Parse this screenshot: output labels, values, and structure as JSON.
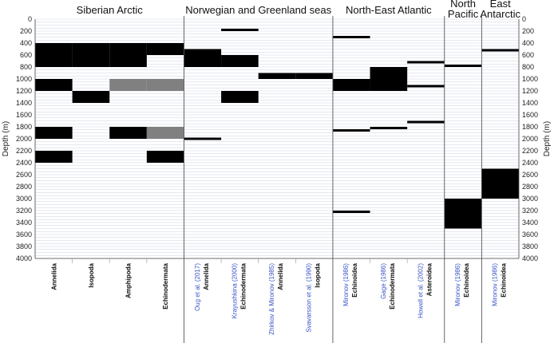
{
  "chart_data": {
    "type": "bar",
    "description_type": "depth-range range chart",
    "y_axis": {
      "label": "Depth (m)",
      "min": 0,
      "max": 4000,
      "tick_step": 200,
      "inverted": true,
      "ticks": [
        "0",
        "200",
        "400",
        "600",
        "800",
        "1000",
        "1200",
        "1400",
        "1600",
        "1800",
        "2000",
        "2200",
        "2400",
        "2600",
        "2800",
        "3000",
        "3200",
        "3400",
        "3600",
        "3800",
        "4000"
      ]
    },
    "grid": true,
    "colors": {
      "black": "#000000",
      "gray": "#808080",
      "grid": "#c9d2e3",
      "ref_text": "#3a55c8"
    },
    "regions": [
      {
        "name": "Siberian Arctic",
        "label_lines": [
          "Siberian Arctic"
        ],
        "columns": 4
      },
      {
        "name": "Norwegian and Greenland seas",
        "label_lines": [
          "Norwegian and Greenland seas"
        ],
        "columns": 4
      },
      {
        "name": "North-East Atlantic",
        "label_lines": [
          "North-East Atlantic"
        ],
        "columns": 3
      },
      {
        "name": "North Pacific",
        "label_lines": [
          "North",
          "Pacific"
        ],
        "columns": 1
      },
      {
        "name": "East Antarctic",
        "label_lines": [
          "East",
          "Antarctic"
        ],
        "columns": 1
      }
    ],
    "columns": [
      {
        "region": 0,
        "ref": "",
        "taxon": "Annelida",
        "bars": [
          {
            "from": 400,
            "to": 800,
            "color": "black"
          },
          {
            "from": 1000,
            "to": 1200,
            "color": "black"
          },
          {
            "from": 1800,
            "to": 2000,
            "color": "black"
          },
          {
            "from": 2200,
            "to": 2400,
            "color": "black"
          }
        ]
      },
      {
        "region": 0,
        "ref": "",
        "taxon": "Isopoda",
        "bars": [
          {
            "from": 400,
            "to": 800,
            "color": "black"
          },
          {
            "from": 1200,
            "to": 1400,
            "color": "black"
          }
        ]
      },
      {
        "region": 0,
        "ref": "",
        "taxon": "Amphipoda",
        "bars": [
          {
            "from": 400,
            "to": 800,
            "color": "black"
          },
          {
            "from": 1000,
            "to": 1200,
            "color": "gray"
          },
          {
            "from": 1800,
            "to": 2000,
            "color": "black"
          }
        ]
      },
      {
        "region": 0,
        "ref": "",
        "taxon": "Echinodermata",
        "bars": [
          {
            "from": 400,
            "to": 600,
            "color": "black"
          },
          {
            "from": 1000,
            "to": 1200,
            "color": "gray"
          },
          {
            "from": 1800,
            "to": 2000,
            "color": "gray"
          },
          {
            "from": 2200,
            "to": 2400,
            "color": "black"
          }
        ]
      },
      {
        "region": 1,
        "ref": "Oug et al. (2017)",
        "taxon": "Annelida",
        "bars": [
          {
            "from": 500,
            "to": 800,
            "color": "black"
          },
          {
            "from": 1980,
            "to": 2020,
            "color": "black"
          }
        ]
      },
      {
        "region": 1,
        "ref": "Krayushkina (2000)",
        "taxon": "Echinodermata",
        "bars": [
          {
            "from": 160,
            "to": 200,
            "color": "black"
          },
          {
            "from": 600,
            "to": 800,
            "color": "black"
          },
          {
            "from": 1200,
            "to": 1400,
            "color": "black"
          }
        ]
      },
      {
        "region": 1,
        "ref": "Zhirkov & Mironov (1985)",
        "taxon": "Annelida",
        "bars": [
          {
            "from": 900,
            "to": 1000,
            "color": "black"
          }
        ]
      },
      {
        "region": 1,
        "ref": "Svavarsson et al. (1990)",
        "taxon": "Isopoda",
        "bars": [
          {
            "from": 900,
            "to": 1000,
            "color": "black"
          }
        ]
      },
      {
        "region": 2,
        "ref": "Mironov (1986)",
        "taxon": "Echinoidea",
        "bars": [
          {
            "from": 280,
            "to": 320,
            "color": "black"
          },
          {
            "from": 1000,
            "to": 1200,
            "color": "black"
          },
          {
            "from": 1840,
            "to": 1880,
            "color": "black"
          },
          {
            "from": 3200,
            "to": 3240,
            "color": "black"
          }
        ]
      },
      {
        "region": 2,
        "ref": "Gage (1986)",
        "taxon": "Echinodermata",
        "bars": [
          {
            "from": 800,
            "to": 1200,
            "color": "black"
          },
          {
            "from": 1800,
            "to": 1840,
            "color": "black"
          }
        ]
      },
      {
        "region": 2,
        "ref": "Howell et al. (2002)",
        "taxon": "Asteroidea",
        "bars": [
          {
            "from": 700,
            "to": 740,
            "color": "black"
          },
          {
            "from": 1100,
            "to": 1140,
            "color": "black"
          },
          {
            "from": 1700,
            "to": 1740,
            "color": "black"
          }
        ]
      },
      {
        "region": 3,
        "ref": "Mironov (1986)",
        "taxon": "Echinoidea",
        "bars": [
          {
            "from": 760,
            "to": 800,
            "color": "black"
          },
          {
            "from": 3000,
            "to": 3500,
            "color": "black"
          }
        ]
      },
      {
        "region": 4,
        "ref": "Mironov (1986)",
        "taxon": "Echinoidea",
        "bars": [
          {
            "from": 500,
            "to": 540,
            "color": "black"
          },
          {
            "from": 2500,
            "to": 3000,
            "color": "black"
          }
        ]
      }
    ]
  }
}
